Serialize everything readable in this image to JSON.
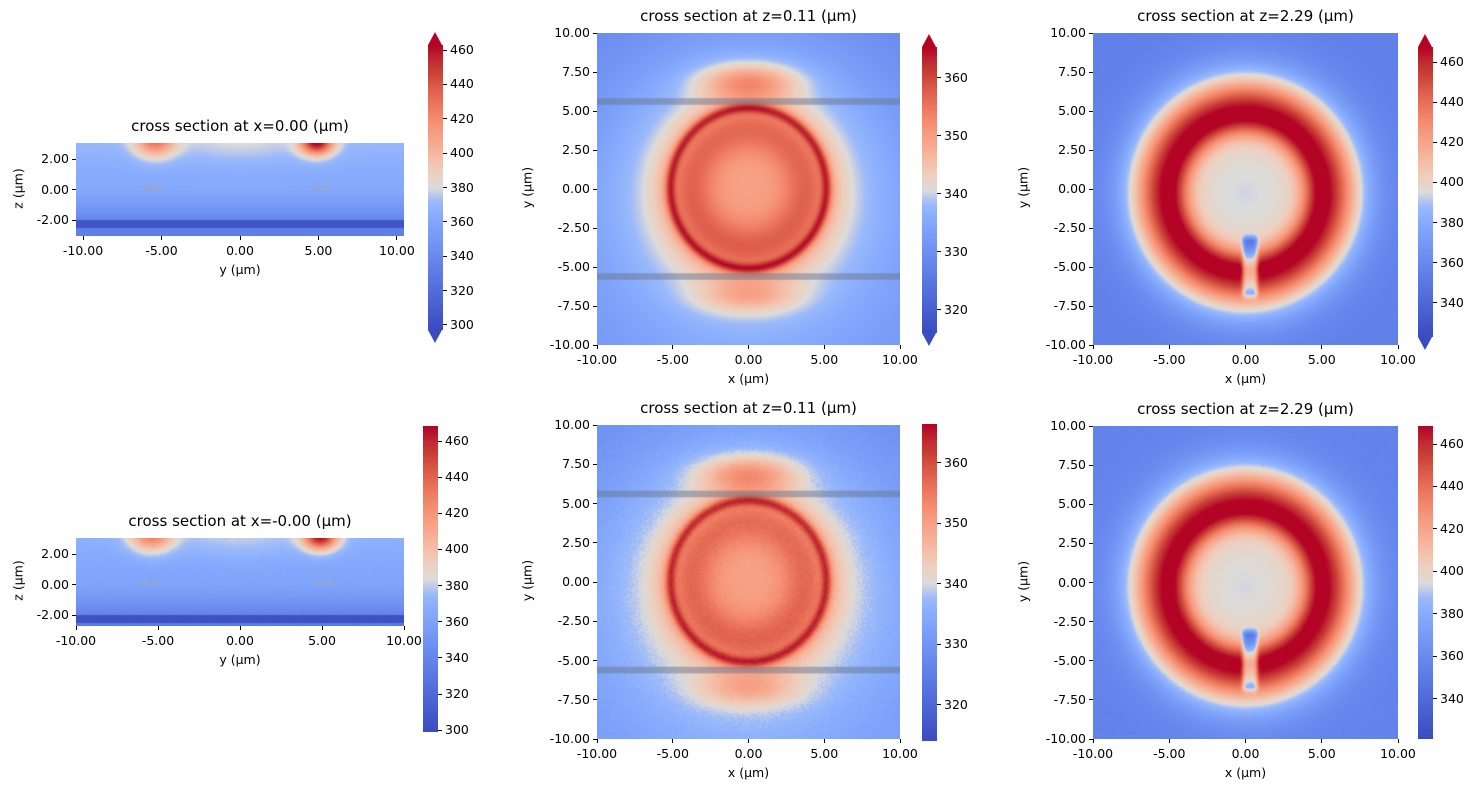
{
  "figure": {
    "background": "#ffffff"
  },
  "colormap": {
    "name": "coolwarm",
    "stops": [
      [
        0.0,
        "#3b4cc0"
      ],
      [
        0.05,
        "#4358c9"
      ],
      [
        0.1,
        "#4b64d3"
      ],
      [
        0.15,
        "#5470dd"
      ],
      [
        0.2,
        "#5d7ce6"
      ],
      [
        0.25,
        "#6788ee"
      ],
      [
        0.3,
        "#7194f3"
      ],
      [
        0.35,
        "#7ca0f9"
      ],
      [
        0.4,
        "#88acfd"
      ],
      [
        0.45,
        "#9bbafb"
      ],
      [
        0.475,
        "#becae9"
      ],
      [
        0.5,
        "#dcdcdc"
      ],
      [
        0.525,
        "#e7d5c8"
      ],
      [
        0.55,
        "#edd0c0"
      ],
      [
        0.6,
        "#f4bfa9"
      ],
      [
        0.65,
        "#f6ac92"
      ],
      [
        0.7,
        "#f79b7f"
      ],
      [
        0.75,
        "#f3886b"
      ],
      [
        0.8,
        "#ea735a"
      ],
      [
        0.85,
        "#dd5d4a"
      ],
      [
        0.9,
        "#cb4439"
      ],
      [
        0.95,
        "#c02a31"
      ],
      [
        1.0,
        "#b40426"
      ]
    ]
  },
  "chart_data": [
    {
      "id": "top-left",
      "type": "heatmap",
      "title": "cross section at x=0.00 (μm)",
      "xlabel": "y (μm)",
      "ylabel": "z (μm)",
      "x_range": [
        -10.45,
        10.45
      ],
      "y_range": [
        -3.02,
        3.08
      ],
      "x_ticks": [
        "-10.00",
        "-5.00",
        "0.00",
        "5.00",
        "10.00"
      ],
      "y_ticks": [
        "2.00",
        "0.00",
        "-2.00"
      ],
      "colorbar": {
        "ticks": [
          460,
          440,
          420,
          400,
          380,
          360,
          340,
          320,
          300
        ],
        "vmin": 297,
        "vmax": 463,
        "extend": true
      },
      "noise": 0,
      "field": {
        "kind": "side",
        "profile": [
          [
            3.08,
            370
          ],
          [
            2.0,
            366
          ],
          [
            1.0,
            363
          ],
          [
            0.0,
            361
          ],
          [
            -0.7,
            355
          ],
          [
            -1.5,
            345
          ],
          [
            -2.0,
            337
          ]
        ],
        "band": {
          "z0": -2.49,
          "z1": -2.0,
          "value": 303
        },
        "below_value": 332,
        "top_bump": {
          "amp": 10,
          "cy": 3.1,
          "sx": 4.2,
          "sy": 1.4
        },
        "blobs": [
          {
            "y": -5.4,
            "z": 3.3,
            "sy": 1.3,
            "sz": 1.1,
            "amp": 60
          },
          {
            "y": 4.9,
            "z": 3.15,
            "sy": 1.05,
            "sz": 0.85,
            "amp": 95
          }
        ],
        "dashes": {
          "z": 0.13,
          "h": 0.22,
          "color": "#9aa6c6",
          "segments": [
            [
              -6.1,
              -5.6
            ],
            [
              -5.45,
              -4.95
            ],
            [
              4.6,
              5.05
            ],
            [
              5.2,
              5.7
            ]
          ]
        }
      }
    },
    {
      "id": "top-middle",
      "type": "heatmap",
      "title": "cross section at z=0.11 (μm)",
      "xlabel": "x (μm)",
      "ylabel": "y (μm)",
      "x_range": [
        -10,
        10
      ],
      "y_range": [
        -10,
        10
      ],
      "x_ticks": [
        "-10.00",
        "-5.00",
        "0.00",
        "5.00",
        "10.00"
      ],
      "y_ticks": [
        "10.00",
        "7.50",
        "5.00",
        "2.50",
        "0.00",
        "-2.50",
        "-5.00",
        "-7.50",
        "-10.00"
      ],
      "colorbar": {
        "ticks": [
          360,
          350,
          340,
          330,
          320
        ],
        "vmin": 316,
        "vmax": 365.3,
        "extend": true
      },
      "noise": 0,
      "field": {
        "kind": "slice_ring",
        "base": 329.5,
        "base_slope": -0.15,
        "center": [
          0,
          0.05
        ],
        "glow": {
          "amp": 20,
          "sigma": 8.5
        },
        "interior": {
          "amp": 11.5,
          "r": 4.0,
          "sigma": 1.8
        },
        "ring": {
          "amp": 13,
          "r": 5.15,
          "sigma_in": 0.32,
          "sigma_out": 0.35
        },
        "plumes": [
          {
            "x": 0,
            "y": 6.9,
            "sx": 3.2,
            "sy": 1.15,
            "amp": 13
          },
          {
            "x": 0,
            "y": -6.9,
            "sx": 3.2,
            "sy": 1.05,
            "amp": 8
          }
        ],
        "bands": [
          {
            "y0": 5.4,
            "y1": 5.82,
            "color": "rgba(104,118,142,0.5)"
          },
          {
            "y0": -5.82,
            "y1": -5.4,
            "color": "rgba(104,118,142,0.5)"
          }
        ]
      }
    },
    {
      "id": "top-right",
      "type": "heatmap",
      "title": "cross section at z=2.29 (μm)",
      "xlabel": "x (μm)",
      "ylabel": "y (μm)",
      "x_range": [
        -10,
        10
      ],
      "y_range": [
        -10,
        10
      ],
      "x_ticks": [
        "-10.00",
        "-5.00",
        "0.00",
        "5.00",
        "10.00"
      ],
      "y_ticks": [
        "10.00",
        "7.50",
        "5.00",
        "2.50",
        "0.00",
        "-2.50",
        "-5.00",
        "-7.50",
        "-10.00"
      ],
      "colorbar": {
        "ticks": [
          460,
          440,
          420,
          400,
          380,
          360,
          340
        ],
        "vmin": 323,
        "vmax": 467.5,
        "extend": true
      },
      "noise": 0,
      "field": {
        "kind": "slice_ring",
        "base": 355,
        "base_slope": 0,
        "center": [
          0,
          -0.25
        ],
        "glow": {
          "amp": 36,
          "sigma": 4.6
        },
        "halo": {
          "amp": 28,
          "r": 5.0,
          "sigma": 3.2
        },
        "ring": {
          "amp": 80,
          "r": 5.05,
          "sigma_in": 1.3,
          "sigma_out": 2.3
        },
        "plumes": [],
        "bands": [],
        "notch": {
          "x": 0.3,
          "halfwidth": 0.5,
          "y0": -6.6,
          "y1": -3.4,
          "amp": 58
        }
      }
    },
    {
      "id": "bottom-left",
      "type": "heatmap",
      "title": "cross section at x=-0.00 (μm)",
      "xlabel": "y (μm)",
      "ylabel": "z (μm)",
      "x_range": [
        -10.0,
        10.0
      ],
      "y_range": [
        -2.69,
        3.08
      ],
      "x_ticks": [
        "-10.00",
        "-5.00",
        "0.00",
        "5.00",
        "10.00"
      ],
      "y_ticks": [
        "2.00",
        "0.00",
        "-2.00"
      ],
      "colorbar": {
        "ticks": [
          460,
          440,
          420,
          400,
          380,
          360,
          340,
          320,
          300
        ],
        "vmin": 299,
        "vmax": 468.3,
        "extend": false
      },
      "noise": 1.4,
      "field": {
        "kind": "side",
        "profile": [
          [
            3.08,
            370
          ],
          [
            2.0,
            366
          ],
          [
            1.0,
            363
          ],
          [
            0.0,
            361
          ],
          [
            -0.7,
            355
          ],
          [
            -1.5,
            345
          ],
          [
            -2.0,
            337
          ]
        ],
        "band": {
          "z0": -2.49,
          "z1": -2.0,
          "value": 303
        },
        "below_value": 332,
        "top_bump": {
          "amp": 10,
          "cy": 3.1,
          "sx": 4.2,
          "sy": 1.4
        },
        "blobs": [
          {
            "y": -5.4,
            "z": 3.3,
            "sy": 1.3,
            "sz": 1.1,
            "amp": 60
          },
          {
            "y": 4.9,
            "z": 3.15,
            "sy": 1.05,
            "sz": 0.85,
            "amp": 95
          }
        ],
        "dashes": {
          "z": 0.13,
          "h": 0.22,
          "color": "#9aa6c6",
          "segments": [
            [
              -6.1,
              -5.6
            ],
            [
              -5.45,
              -4.95
            ],
            [
              4.6,
              5.05
            ],
            [
              5.2,
              5.7
            ]
          ]
        }
      }
    },
    {
      "id": "bottom-middle",
      "type": "heatmap",
      "title": "cross section at z=0.11 (μm)",
      "xlabel": "x (μm)",
      "ylabel": "y (μm)",
      "x_range": [
        -10,
        10
      ],
      "y_range": [
        -10,
        10
      ],
      "x_ticks": [
        "-10.00",
        "-5.00",
        "0.00",
        "5.00",
        "10.00"
      ],
      "y_ticks": [
        "10.00",
        "7.50",
        "5.00",
        "2.50",
        "0.00",
        "-2.50",
        "-5.00",
        "-7.50",
        "-10.00"
      ],
      "colorbar": {
        "ticks": [
          360,
          350,
          340,
          330,
          320
        ],
        "vmin": 314,
        "vmax": 366.4,
        "extend": false
      },
      "noise": 1.0,
      "field": {
        "kind": "slice_ring",
        "base": 329.5,
        "base_slope": -0.15,
        "center": [
          0,
          0.05
        ],
        "glow": {
          "amp": 20,
          "sigma": 8.5
        },
        "interior": {
          "amp": 11.5,
          "r": 4.0,
          "sigma": 1.8
        },
        "ring": {
          "amp": 13,
          "r": 5.15,
          "sigma_in": 0.32,
          "sigma_out": 0.35
        },
        "plumes": [
          {
            "x": 0,
            "y": 6.9,
            "sx": 3.2,
            "sy": 1.15,
            "amp": 13
          },
          {
            "x": 0,
            "y": -6.9,
            "sx": 3.2,
            "sy": 1.05,
            "amp": 8
          }
        ],
        "bands": [
          {
            "y0": 5.4,
            "y1": 5.82,
            "color": "rgba(104,118,142,0.5)"
          },
          {
            "y0": -5.82,
            "y1": -5.4,
            "color": "rgba(104,118,142,0.5)"
          }
        ]
      }
    },
    {
      "id": "bottom-right",
      "type": "heatmap",
      "title": "cross section at z=2.29 (μm)",
      "xlabel": "x (μm)",
      "ylabel": "y (μm)",
      "x_range": [
        -10,
        10
      ],
      "y_range": [
        -10,
        10
      ],
      "x_ticks": [
        "-10.00",
        "-5.00",
        "0.00",
        "5.00",
        "10.00"
      ],
      "y_ticks": [
        "10.00",
        "7.50",
        "5.00",
        "2.50",
        "0.00",
        "-2.50",
        "-5.00",
        "-7.50",
        "-10.00"
      ],
      "colorbar": {
        "ticks": [
          460,
          440,
          420,
          400,
          380,
          360,
          340
        ],
        "vmin": 321,
        "vmax": 468.5,
        "extend": false
      },
      "noise": 1.2,
      "field": {
        "kind": "slice_ring",
        "base": 355,
        "base_slope": 0,
        "center": [
          0,
          -0.25
        ],
        "glow": {
          "amp": 36,
          "sigma": 4.6
        },
        "halo": {
          "amp": 28,
          "r": 5.0,
          "sigma": 3.2
        },
        "ring": {
          "amp": 80,
          "r": 5.05,
          "sigma_in": 1.3,
          "sigma_out": 2.3
        },
        "plumes": [],
        "bands": [],
        "notch": {
          "x": 0.3,
          "halfwidth": 0.5,
          "y0": -6.6,
          "y1": -3.4,
          "amp": 58
        }
      }
    }
  ]
}
